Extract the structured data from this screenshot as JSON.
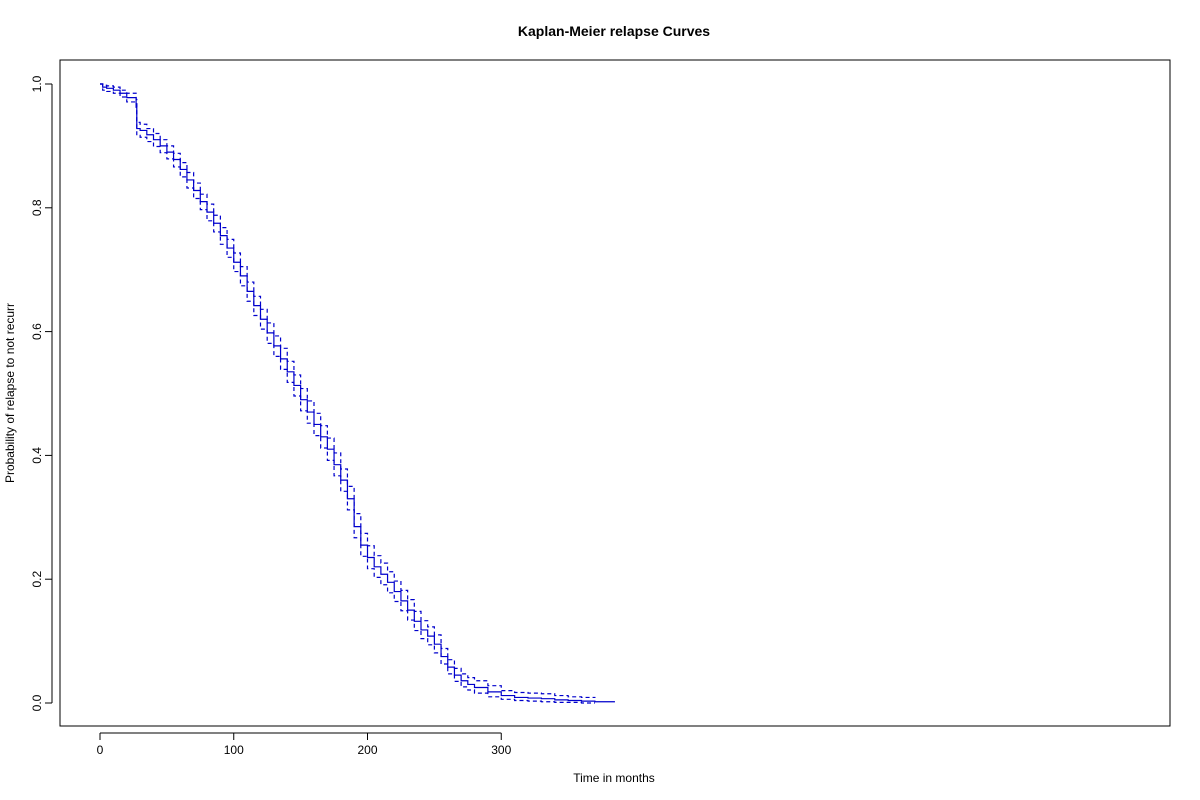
{
  "chart_data": {
    "type": "line",
    "title": "Kaplan-Meier relapse Curves",
    "xlabel": "Time in months",
    "ylabel": "Probability of relapse to not recurr",
    "xlim": [
      0,
      400
    ],
    "ylim": [
      0,
      1
    ],
    "x_ticks": [
      0,
      100,
      200,
      300
    ],
    "y_ticks": [
      0.0,
      0.2,
      0.4,
      0.6,
      0.8,
      1.0
    ],
    "x_tick_labels": [
      "0",
      "100",
      "200",
      "300"
    ],
    "y_tick_labels": [
      "0.0",
      "0.2",
      "0.4",
      "0.6",
      "0.8",
      "1.0"
    ],
    "grid": false,
    "line_color": "#0000cc",
    "series": [
      {
        "role": "estimate",
        "style": "solid",
        "x": [
          0,
          2,
          5,
          10,
          15,
          20,
          27,
          27.5,
          30,
          35,
          40,
          45,
          50,
          55,
          60,
          65,
          70,
          75,
          80,
          85,
          90,
          95,
          100,
          105,
          110,
          115,
          120,
          125,
          130,
          135,
          140,
          145,
          150,
          155,
          160,
          165,
          170,
          175,
          180,
          185,
          190,
          195,
          200,
          205,
          210,
          215,
          220,
          225,
          230,
          235,
          240,
          245,
          250,
          255,
          260,
          265,
          270,
          275,
          280,
          290,
          300,
          310,
          320,
          330,
          340,
          350,
          360,
          370,
          385
        ],
        "y": [
          1.0,
          0.995,
          0.993,
          0.99,
          0.985,
          0.978,
          0.968,
          0.928,
          0.925,
          0.918,
          0.91,
          0.9,
          0.89,
          0.878,
          0.862,
          0.845,
          0.828,
          0.81,
          0.793,
          0.775,
          0.755,
          0.735,
          0.712,
          0.69,
          0.665,
          0.642,
          0.62,
          0.598,
          0.577,
          0.556,
          0.535,
          0.513,
          0.49,
          0.47,
          0.45,
          0.43,
          0.41,
          0.385,
          0.36,
          0.33,
          0.285,
          0.255,
          0.235,
          0.22,
          0.208,
          0.195,
          0.18,
          0.165,
          0.15,
          0.132,
          0.118,
          0.108,
          0.095,
          0.075,
          0.058,
          0.045,
          0.036,
          0.03,
          0.025,
          0.018,
          0.012,
          0.009,
          0.008,
          0.007,
          0.005,
          0.004,
          0.003,
          0.002,
          0.002
        ]
      },
      {
        "role": "upper-95-ci",
        "style": "dashed",
        "x": [
          0,
          2,
          5,
          10,
          15,
          20,
          27,
          27.5,
          30,
          35,
          40,
          45,
          50,
          55,
          60,
          65,
          70,
          75,
          80,
          85,
          90,
          95,
          100,
          105,
          110,
          115,
          120,
          125,
          130,
          135,
          140,
          145,
          150,
          155,
          160,
          165,
          170,
          175,
          180,
          185,
          190,
          195,
          200,
          205,
          210,
          215,
          220,
          225,
          230,
          235,
          240,
          245,
          250,
          255,
          260,
          265,
          270,
          275,
          280,
          290,
          300,
          310,
          320,
          330,
          340,
          350,
          360,
          370
        ],
        "y": [
          1.0,
          0.998,
          0.997,
          0.995,
          0.99,
          0.985,
          0.975,
          0.938,
          0.935,
          0.928,
          0.92,
          0.91,
          0.9,
          0.888,
          0.873,
          0.857,
          0.84,
          0.822,
          0.806,
          0.788,
          0.768,
          0.749,
          0.727,
          0.705,
          0.68,
          0.657,
          0.636,
          0.614,
          0.593,
          0.573,
          0.552,
          0.53,
          0.508,
          0.488,
          0.468,
          0.448,
          0.428,
          0.404,
          0.378,
          0.35,
          0.306,
          0.274,
          0.254,
          0.238,
          0.226,
          0.212,
          0.197,
          0.182,
          0.167,
          0.148,
          0.133,
          0.123,
          0.11,
          0.088,
          0.07,
          0.056,
          0.047,
          0.041,
          0.036,
          0.028,
          0.02,
          0.017,
          0.016,
          0.015,
          0.012,
          0.01,
          0.009,
          0.008
        ]
      },
      {
        "role": "lower-95-ci",
        "style": "dashed",
        "x": [
          0,
          2,
          5,
          10,
          15,
          20,
          27,
          27.5,
          30,
          35,
          40,
          45,
          50,
          55,
          60,
          65,
          70,
          75,
          80,
          85,
          90,
          95,
          100,
          105,
          110,
          115,
          120,
          125,
          130,
          135,
          140,
          145,
          150,
          155,
          160,
          165,
          170,
          175,
          180,
          185,
          190,
          195,
          200,
          205,
          210,
          215,
          220,
          225,
          230,
          235,
          240,
          245,
          250,
          255,
          260,
          265,
          270,
          275,
          280,
          290,
          300,
          310,
          320,
          330,
          340,
          350,
          360,
          370
        ],
        "y": [
          1.0,
          0.99,
          0.988,
          0.985,
          0.979,
          0.971,
          0.96,
          0.917,
          0.914,
          0.907,
          0.899,
          0.889,
          0.879,
          0.866,
          0.85,
          0.832,
          0.815,
          0.797,
          0.779,
          0.761,
          0.741,
          0.72,
          0.697,
          0.674,
          0.649,
          0.626,
          0.604,
          0.581,
          0.56,
          0.539,
          0.518,
          0.496,
          0.472,
          0.452,
          0.432,
          0.412,
          0.392,
          0.367,
          0.342,
          0.312,
          0.267,
          0.237,
          0.217,
          0.203,
          0.191,
          0.178,
          0.164,
          0.149,
          0.134,
          0.117,
          0.104,
          0.094,
          0.081,
          0.063,
          0.047,
          0.035,
          0.026,
          0.021,
          0.016,
          0.01,
          0.006,
          0.004,
          0.003,
          0.002,
          0.001,
          0.001,
          0.0,
          0.0
        ]
      }
    ]
  }
}
